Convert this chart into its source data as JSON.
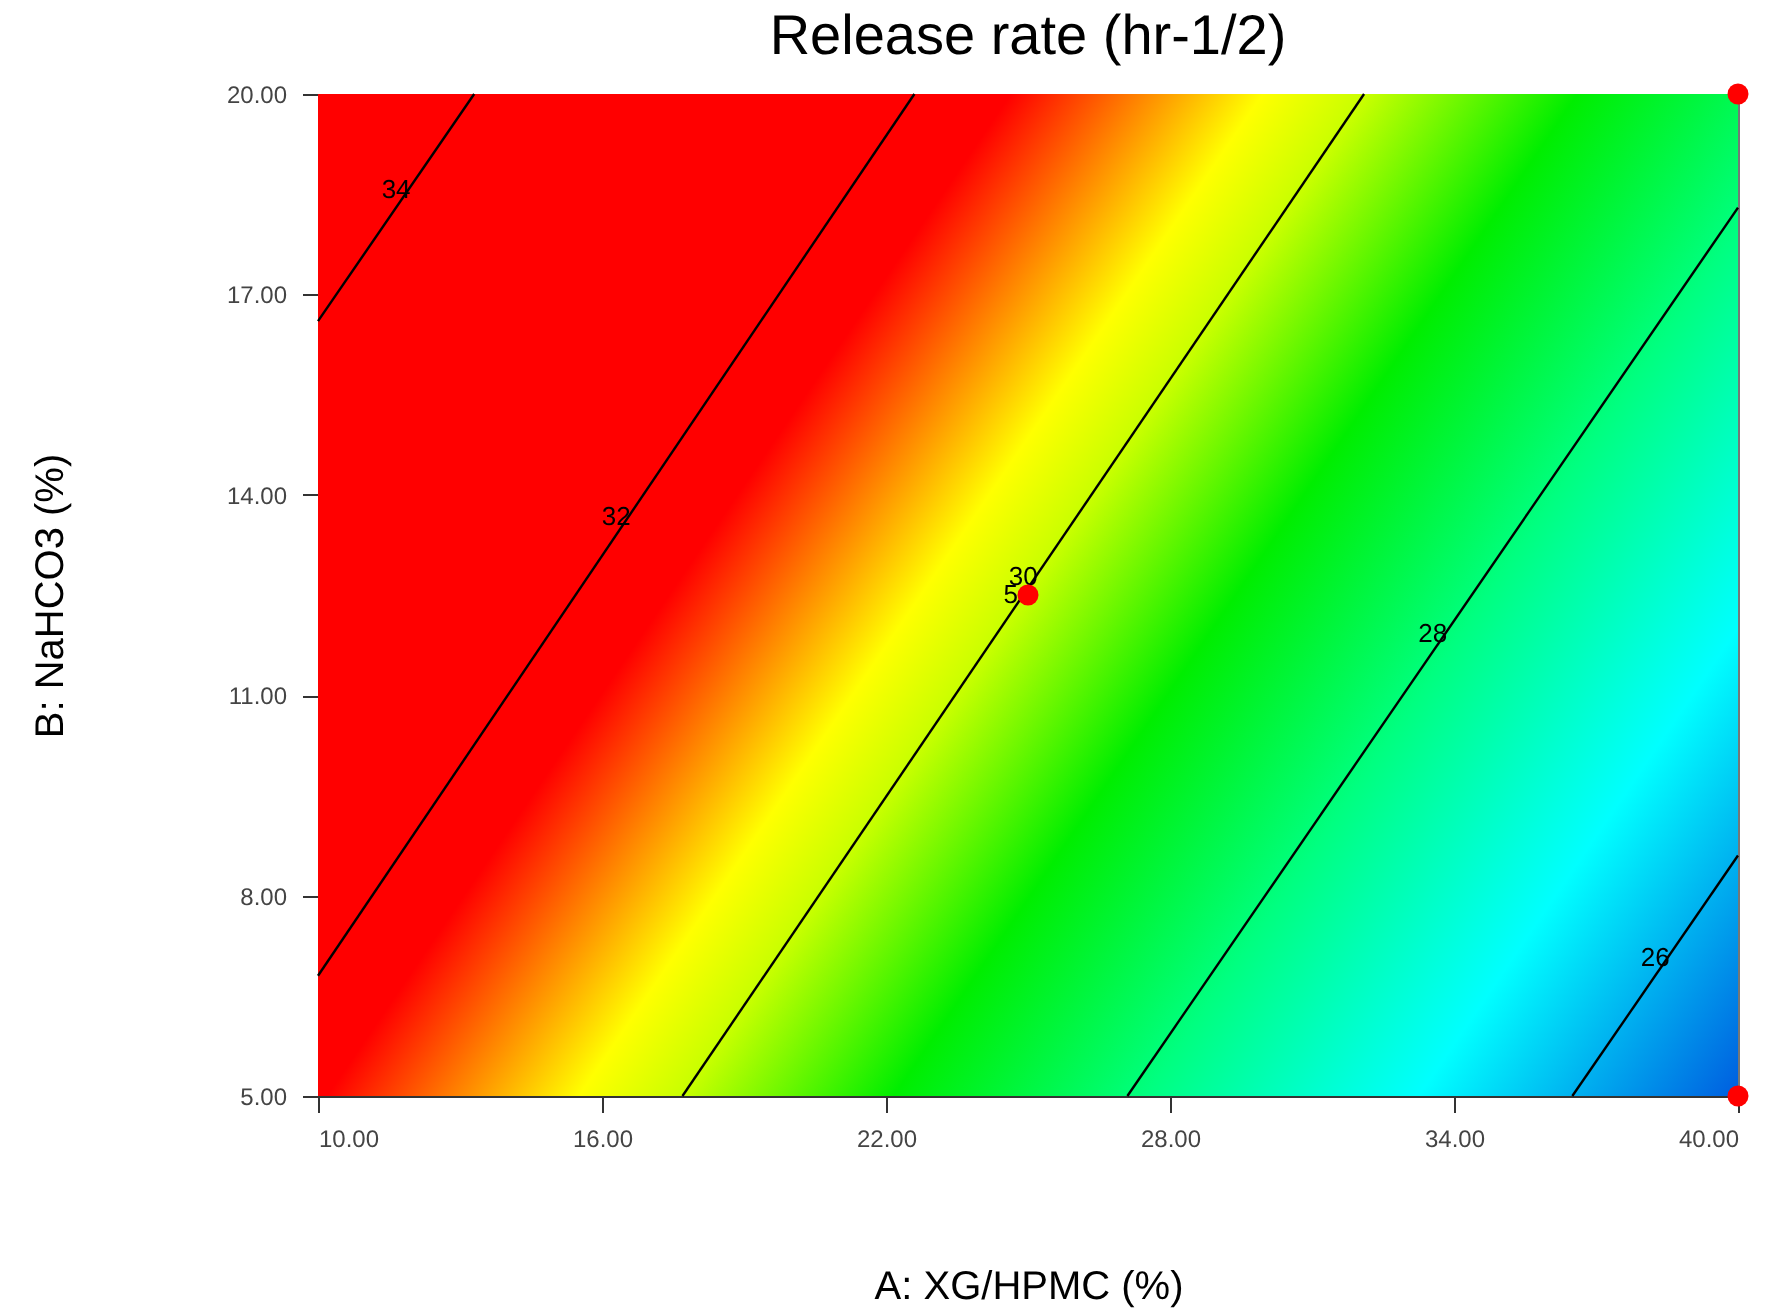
{
  "chart_data": {
    "type": "line",
    "title": "Release rate (hr-1/2)",
    "xlabel": "A: XG/HPMC (%)",
    "ylabel": "B: NaHCO3 (%)",
    "xlim": [
      10,
      40
    ],
    "ylim": [
      5,
      20
    ],
    "xticks": [
      {
        "value": 10,
        "label": "10.00"
      },
      {
        "value": 16,
        "label": "16.00"
      },
      {
        "value": 22,
        "label": "22.00"
      },
      {
        "value": 28,
        "label": "28.00"
      },
      {
        "value": 34,
        "label": "34.00"
      },
      {
        "value": 40,
        "label": "40.00"
      }
    ],
    "yticks": [
      {
        "value": 5,
        "label": "5.00"
      },
      {
        "value": 8,
        "label": "8.00"
      },
      {
        "value": 11,
        "label": "11.00"
      },
      {
        "value": 14,
        "label": "14.00"
      },
      {
        "value": 17,
        "label": "17.00"
      },
      {
        "value": 20,
        "label": "20.00"
      }
    ],
    "series": [
      {
        "name": "34",
        "color": "#000000",
        "x": [
          10,
          13.3
        ],
        "values": [
          16.6,
          20
        ]
      },
      {
        "name": "32",
        "color": "#000000",
        "x": [
          10,
          22.6
        ],
        "values": [
          6.8,
          20
        ]
      },
      {
        "name": "30",
        "color": "#000000",
        "x": [
          17.7,
          32.1
        ],
        "values": [
          5,
          20
        ]
      },
      {
        "name": "28",
        "color": "#000000",
        "x": [
          27.1,
          40
        ],
        "values": [
          5,
          18.3
        ]
      },
      {
        "name": "26",
        "color": "#000000",
        "x": [
          36.5,
          40
        ],
        "values": [
          5,
          8.6
        ]
      },
      {
        "type": "scatter",
        "color": "#ff0000",
        "marker": "circle",
        "x": [
          40,
          25,
          40
        ],
        "values": [
          20,
          12.5,
          5
        ]
      }
    ],
    "annotations": [
      {
        "text": "5",
        "x": 25,
        "y": 12.5
      }
    ]
  }
}
